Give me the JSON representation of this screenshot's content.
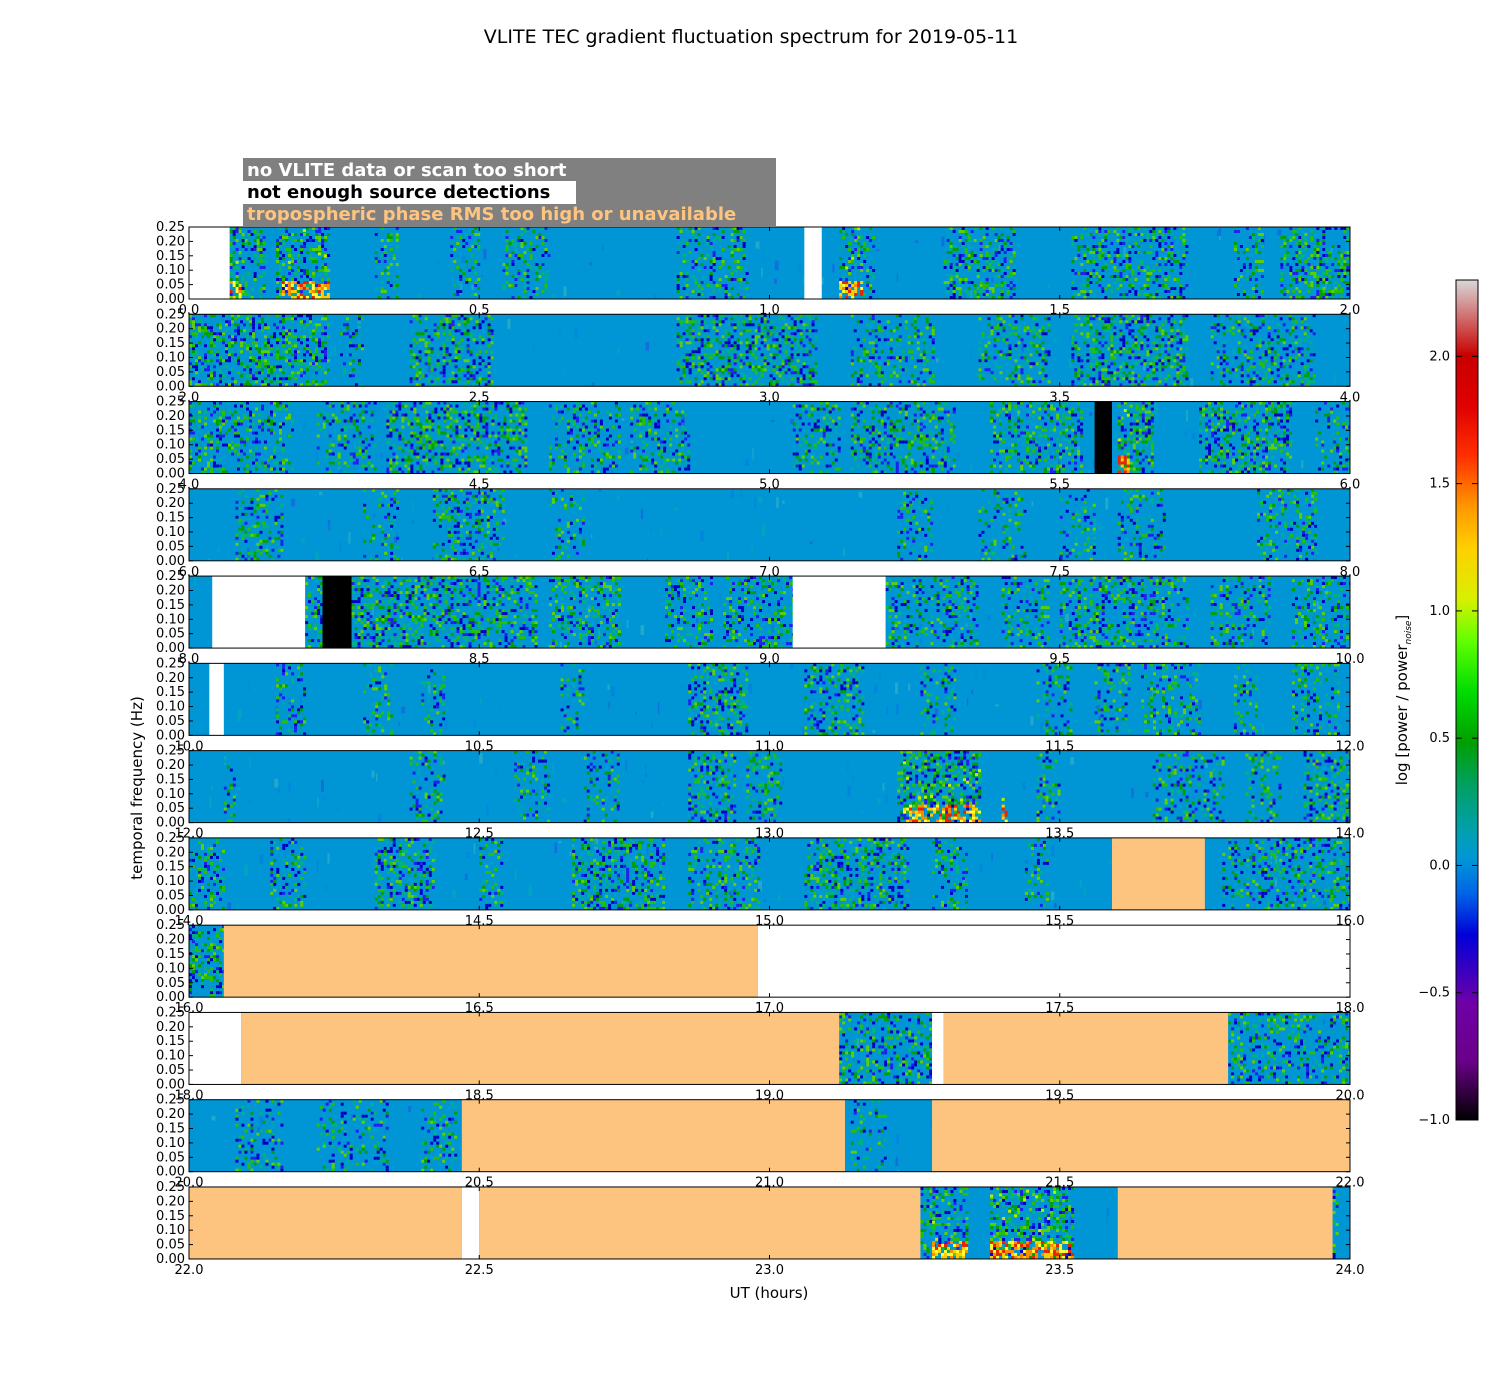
{
  "chart_data": {
    "type": "heatmap",
    "title": "VLITE TEC gradient fluctuation spectrum for 2019-05-11",
    "xlabel": "UT (hours)",
    "ylabel": "temporal frequency (Hz)",
    "ylim": [
      0,
      0.25
    ],
    "y_ticks": [
      "0.00",
      "0.05",
      "0.10",
      "0.15",
      "0.20",
      "0.25"
    ],
    "colorbar": {
      "label_prefix": "log [power / power",
      "label_subscript": "noise",
      "label_suffix": "]",
      "range": [
        -1.0,
        2.3
      ],
      "ticks": [
        "−1.0",
        "−0.5",
        "0.0",
        "0.5",
        "1.0",
        "1.5",
        "2.0"
      ],
      "tick_values": [
        -1.0,
        -0.5,
        0.0,
        0.5,
        1.0,
        1.5,
        2.0
      ]
    },
    "legend": {
      "placement": "top-left",
      "background": "#808080",
      "entries": [
        {
          "label": "no VLITE data or scan too short",
          "color": "#ffffff"
        },
        {
          "label": "not enough source detections",
          "color": "#000000"
        },
        {
          "label": "tropospheric phase RMS too high or unavailable",
          "color": "#ffc580"
        }
      ]
    },
    "flag_colors": {
      "nodata": "#ffffff",
      "nodetect": "#000000",
      "tropo": "#fdc47f",
      "background": "#0096d6"
    },
    "panels": [
      {
        "range": [
          0,
          2
        ],
        "xticks": [
          "0.0",
          "0.5",
          "1.0",
          "1.5",
          "2.0"
        ],
        "flags": [
          {
            "type": "nodata",
            "x": [
              0,
              0.07
            ]
          },
          {
            "type": "nodata",
            "x": [
              1.06,
              1.09
            ]
          }
        ],
        "active": [
          [
            0.07,
            0.13,
            0.8
          ],
          [
            0.15,
            0.24,
            0.9
          ],
          [
            0.32,
            0.36,
            0.5
          ],
          [
            0.45,
            0.5,
            0.5
          ],
          [
            0.54,
            0.62,
            0.6
          ],
          [
            0.84,
            0.96,
            0.6
          ],
          [
            1.12,
            1.18,
            0.6
          ],
          [
            1.3,
            1.42,
            0.7
          ],
          [
            1.52,
            1.72,
            0.7
          ],
          [
            1.8,
            1.85,
            0.5
          ],
          [
            1.88,
            2.0,
            0.8
          ]
        ],
        "hot": [
          [
            0.07,
            0.09
          ],
          [
            0.16,
            0.24
          ],
          [
            1.12,
            1.16
          ]
        ]
      },
      {
        "range": [
          2,
          4
        ],
        "xticks": [
          "2.0",
          "2.5",
          "3.0",
          "3.5",
          "4.0"
        ],
        "flags": [],
        "active": [
          [
            2.0,
            2.24,
            0.9
          ],
          [
            2.26,
            2.3,
            0.5
          ],
          [
            2.38,
            2.52,
            0.8
          ],
          [
            2.84,
            3.08,
            0.9
          ],
          [
            3.14,
            3.28,
            0.6
          ],
          [
            3.36,
            3.48,
            0.6
          ],
          [
            3.52,
            3.72,
            0.9
          ],
          [
            3.76,
            3.94,
            0.6
          ]
        ],
        "hot": []
      },
      {
        "range": [
          4,
          6
        ],
        "xticks": [
          "4.0",
          "4.5",
          "5.0",
          "5.5",
          "6.0"
        ],
        "flags": [
          {
            "type": "nodetect",
            "x": [
              5.56,
              5.59
            ]
          }
        ],
        "active": [
          [
            4.0,
            4.18,
            0.6
          ],
          [
            4.22,
            4.32,
            0.6
          ],
          [
            4.34,
            4.58,
            0.9
          ],
          [
            4.62,
            4.74,
            0.6
          ],
          [
            4.76,
            4.86,
            0.6
          ],
          [
            5.04,
            5.12,
            0.6
          ],
          [
            5.14,
            5.32,
            0.8
          ],
          [
            5.38,
            5.54,
            0.7
          ],
          [
            5.6,
            5.66,
            1.0
          ],
          [
            5.74,
            5.9,
            0.9
          ],
          [
            5.94,
            6.0,
            0.5
          ]
        ],
        "hot": [
          [
            5.6,
            5.62
          ]
        ]
      },
      {
        "range": [
          6,
          8
        ],
        "xticks": [
          "6.0",
          "6.5",
          "7.0",
          "7.5",
          "8.0"
        ],
        "flags": [],
        "active": [
          [
            6.08,
            6.16,
            0.6
          ],
          [
            6.3,
            6.36,
            0.4
          ],
          [
            6.42,
            6.54,
            0.7
          ],
          [
            6.62,
            6.68,
            0.5
          ],
          [
            7.22,
            7.28,
            0.5
          ],
          [
            7.36,
            7.44,
            0.4
          ],
          [
            7.5,
            7.56,
            0.4
          ],
          [
            7.6,
            7.68,
            0.5
          ],
          [
            7.84,
            7.94,
            0.6
          ]
        ],
        "hot": []
      },
      {
        "range": [
          8,
          10
        ],
        "xticks": [
          "8.0",
          "8.5",
          "9.0",
          "9.5",
          "10.0"
        ],
        "flags": [
          {
            "type": "nodata",
            "x": [
              8.04,
              8.2
            ]
          },
          {
            "type": "nodetect",
            "x": [
              8.23,
              8.28
            ]
          },
          {
            "type": "nodata",
            "x": [
              9.04,
              9.2
            ]
          }
        ],
        "active": [
          [
            8.2,
            8.23,
            0.7
          ],
          [
            8.28,
            8.6,
            0.9
          ],
          [
            8.62,
            8.74,
            0.8
          ],
          [
            8.82,
            8.9,
            0.6
          ],
          [
            8.92,
            9.04,
            0.7
          ],
          [
            9.2,
            9.36,
            0.6
          ],
          [
            9.4,
            9.48,
            0.5
          ],
          [
            9.5,
            9.72,
            0.7
          ],
          [
            9.76,
            9.86,
            0.6
          ],
          [
            9.9,
            10.0,
            0.6
          ]
        ],
        "hot": []
      },
      {
        "range": [
          10,
          12
        ],
        "xticks": [
          "10.0",
          "10.5",
          "11.0",
          "11.5",
          "12.0"
        ],
        "flags": [
          {
            "type": "nodata",
            "x": [
              10.035,
              10.06
            ]
          }
        ],
        "active": [
          [
            10.15,
            10.2,
            0.6
          ],
          [
            10.3,
            10.35,
            0.5
          ],
          [
            10.4,
            10.44,
            0.5
          ],
          [
            10.64,
            10.68,
            0.4
          ],
          [
            10.86,
            10.96,
            0.8
          ],
          [
            11.06,
            11.16,
            0.7
          ],
          [
            11.26,
            11.32,
            0.5
          ],
          [
            11.46,
            11.52,
            0.5
          ],
          [
            11.56,
            11.62,
            0.6
          ],
          [
            11.64,
            11.74,
            0.6
          ],
          [
            11.8,
            11.84,
            0.5
          ],
          [
            11.9,
            11.98,
            0.5
          ]
        ],
        "hot": []
      },
      {
        "range": [
          12,
          14
        ],
        "xticks": [
          "12.0",
          "12.5",
          "13.0",
          "13.5",
          "14.0"
        ],
        "flags": [],
        "active": [
          [
            12.06,
            12.08,
            0.5
          ],
          [
            12.38,
            12.44,
            0.6
          ],
          [
            12.56,
            12.62,
            0.5
          ],
          [
            12.68,
            12.74,
            0.5
          ],
          [
            12.86,
            12.94,
            0.7
          ],
          [
            12.96,
            13.02,
            0.6
          ],
          [
            13.22,
            13.36,
            1.0
          ],
          [
            13.46,
            13.5,
            0.7
          ],
          [
            13.66,
            13.78,
            0.6
          ],
          [
            13.82,
            13.88,
            0.5
          ],
          [
            13.92,
            14.0,
            0.8
          ]
        ],
        "hot": [
          [
            13.23,
            13.36
          ],
          [
            13.4,
            13.41
          ]
        ]
      },
      {
        "range": [
          14,
          16
        ],
        "xticks": [
          "14.0",
          "14.5",
          "15.0",
          "15.5",
          "16.0"
        ],
        "flags": [
          {
            "type": "tropo",
            "x": [
              15.59,
              15.75
            ]
          }
        ],
        "active": [
          [
            14.0,
            14.06,
            0.6
          ],
          [
            14.14,
            14.2,
            0.6
          ],
          [
            14.32,
            14.42,
            0.8
          ],
          [
            14.5,
            14.54,
            0.5
          ],
          [
            14.66,
            14.82,
            0.9
          ],
          [
            14.86,
            14.98,
            0.7
          ],
          [
            15.06,
            15.24,
            0.8
          ],
          [
            15.28,
            15.34,
            0.6
          ],
          [
            15.44,
            15.48,
            0.5
          ],
          [
            15.78,
            16.0,
            0.6
          ]
        ],
        "hot": []
      },
      {
        "range": [
          16,
          18
        ],
        "xticks": [
          "16.0",
          "16.5",
          "17.0",
          "17.5",
          "18.0"
        ],
        "flags": [
          {
            "type": "tropo",
            "x": [
              16.06,
              16.98
            ]
          },
          {
            "type": "nodata",
            "x": [
              16.98,
              18.0
            ]
          }
        ],
        "active": [
          [
            16.0,
            16.06,
            0.7
          ]
        ],
        "hot": []
      },
      {
        "range": [
          18,
          20
        ],
        "xticks": [
          "18.0",
          "18.5",
          "19.0",
          "19.5",
          "20.0"
        ],
        "flags": [
          {
            "type": "nodata",
            "x": [
              18.0,
              18.09
            ]
          },
          {
            "type": "tropo",
            "x": [
              18.09,
              19.12
            ]
          },
          {
            "type": "nodata",
            "x": [
              19.28,
              19.3
            ]
          },
          {
            "type": "tropo",
            "x": [
              19.3,
              19.79
            ]
          }
        ],
        "active": [
          [
            19.12,
            19.28,
            0.8
          ],
          [
            19.79,
            20.0,
            0.6
          ]
        ],
        "hot": []
      },
      {
        "range": [
          20,
          22
        ],
        "xticks": [
          "20.0",
          "20.5",
          "21.0",
          "21.5",
          "22.0"
        ],
        "flags": [
          {
            "type": "tropo",
            "x": [
              20.47,
              21.13
            ]
          },
          {
            "type": "tropo",
            "x": [
              21.28,
              22.0
            ]
          }
        ],
        "active": [
          [
            20.08,
            20.16,
            0.5
          ],
          [
            20.22,
            20.34,
            0.4
          ],
          [
            20.4,
            20.46,
            0.5
          ],
          [
            21.14,
            21.2,
            0.4
          ]
        ],
        "hot": []
      },
      {
        "range": [
          22,
          24
        ],
        "xticks": [
          "22.0",
          "22.5",
          "23.0",
          "23.5",
          "24.0"
        ],
        "flags": [
          {
            "type": "tropo",
            "x": [
              22.0,
              22.47
            ]
          },
          {
            "type": "nodata",
            "x": [
              22.47,
              22.5
            ]
          },
          {
            "type": "tropo",
            "x": [
              22.5,
              23.26
            ]
          },
          {
            "type": "tropo",
            "x": [
              23.6,
              23.97
            ]
          }
        ],
        "active": [
          [
            23.26,
            23.34,
            0.9
          ],
          [
            23.38,
            23.52,
            1.0
          ],
          [
            23.97,
            23.98,
            0.6
          ]
        ],
        "hot": [
          [
            23.28,
            23.34
          ],
          [
            23.38,
            23.52
          ]
        ]
      }
    ]
  }
}
